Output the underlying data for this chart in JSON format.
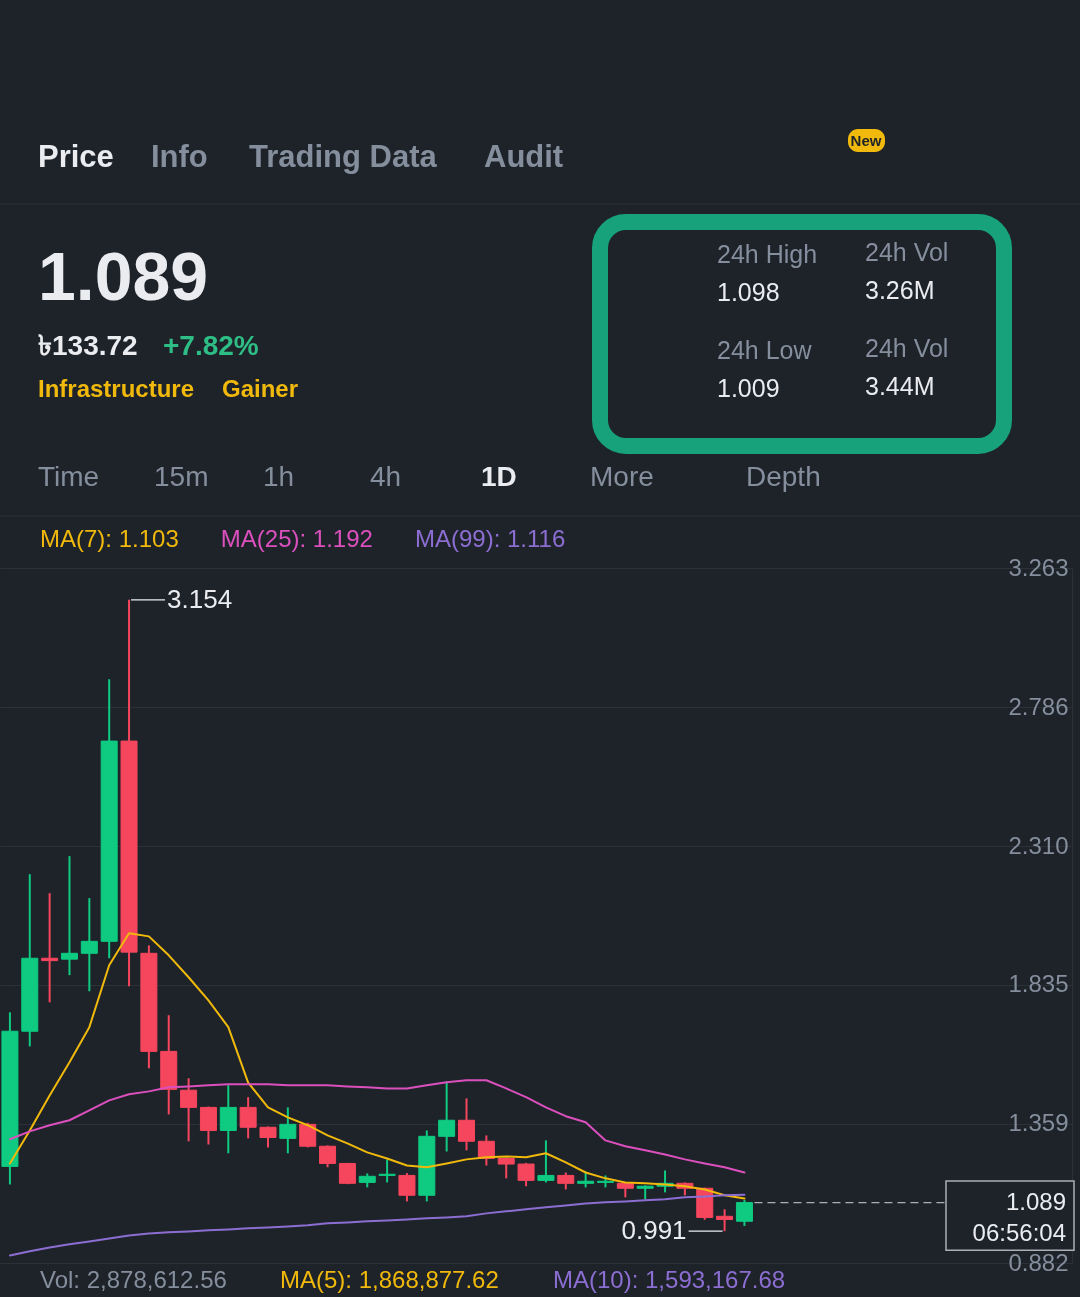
{
  "chart_data": {
    "type": "candlestick",
    "categories": [
      null,
      null,
      null,
      null,
      null,
      null,
      null,
      null,
      null,
      null,
      null,
      null,
      null,
      null,
      null,
      null,
      null,
      null,
      null,
      null,
      null,
      null,
      null,
      null,
      null,
      null,
      null,
      null,
      null,
      null,
      null,
      null,
      null,
      null,
      null,
      null,
      null,
      null,
      null,
      null,
      null,
      null,
      null,
      null,
      null,
      null,
      null,
      null,
      null,
      null,
      null,
      null,
      null,
      null
    ],
    "ohlc": [
      [
        1.213,
        1.741,
        1.151,
        1.676
      ],
      [
        1.676,
        2.214,
        1.624,
        1.926
      ],
      [
        1.926,
        2.149,
        1.775,
        1.918
      ],
      [
        1.923,
        2.276,
        1.868,
        1.943
      ],
      [
        1.943,
        2.132,
        1.813,
        1.984
      ],
      [
        1.984,
        2.882,
        1.926,
        2.67
      ],
      [
        2.67,
        3.154,
        1.83,
        1.947
      ],
      [
        1.943,
        1.97,
        1.549,
        1.607
      ],
      [
        1.607,
        1.731,
        1.391,
        1.477
      ],
      [
        1.474,
        1.515,
        1.299,
        1.415
      ],
      [
        1.415,
        1.418,
        1.288,
        1.336
      ],
      [
        1.336,
        1.491,
        1.258,
        1.415
      ],
      [
        1.415,
        1.45,
        1.309,
        1.347
      ],
      [
        1.347,
        1.35,
        1.278,
        1.312
      ],
      [
        1.309,
        1.415,
        1.258,
        1.357
      ],
      [
        1.357,
        1.362,
        1.278,
        1.282
      ],
      [
        1.282,
        1.285,
        1.21,
        1.223
      ],
      [
        1.223,
        1.225,
        1.152,
        1.155
      ],
      [
        1.158,
        1.189,
        1.141,
        1.179
      ],
      [
        1.182,
        1.237,
        1.158,
        1.186
      ],
      [
        1.182,
        1.19,
        1.093,
        1.114
      ],
      [
        1.114,
        1.336,
        1.093,
        1.316
      ],
      [
        1.316,
        1.504,
        1.264,
        1.371
      ],
      [
        1.371,
        1.446,
        1.268,
        1.299
      ],
      [
        1.299,
        1.319,
        1.216,
        1.24
      ],
      [
        1.24,
        1.24,
        1.172,
        1.221
      ],
      [
        1.221,
        1.225,
        1.145,
        1.165
      ],
      [
        1.165,
        1.302,
        1.158,
        1.182
      ],
      [
        1.182,
        1.192,
        1.134,
        1.155
      ],
      [
        1.155,
        1.196,
        1.141,
        1.162
      ],
      [
        1.158,
        1.182,
        1.141,
        1.162
      ],
      [
        1.155,
        1.158,
        1.107,
        1.138
      ],
      [
        1.138,
        1.148,
        1.1,
        1.145
      ],
      [
        1.145,
        1.199,
        1.124,
        1.155
      ],
      [
        1.155,
        1.158,
        1.114,
        1.138
      ],
      [
        1.138,
        1.14,
        1.03,
        1.038
      ],
      [
        1.042,
        1.066,
        0.991,
        1.031
      ],
      [
        1.025,
        1.098,
        1.009,
        1.089
      ],
      null,
      null,
      null,
      null,
      null,
      null,
      null,
      null,
      null,
      null,
      null,
      null,
      null,
      null,
      null,
      null
    ],
    "colors": [
      "#0ecb81",
      "#0ecb81",
      "#f6465d",
      "#0ecb81",
      "#0ecb81",
      "#0ecb81",
      "#f6465d",
      "#f6465d",
      "#f6465d",
      "#f6465d",
      "#f6465d",
      "#0ecb81",
      "#f6465d",
      "#f6465d",
      "#0ecb81",
      "#f6465d",
      "#f6465d",
      "#f6465d",
      "#0ecb81",
      "#0ecb81",
      "#f6465d",
      "#0ecb81",
      "#0ecb81",
      "#f6465d",
      "#f6465d",
      "#f6465d",
      "#f6465d",
      "#0ecb81",
      "#f6465d",
      "#0ecb81",
      "#0ecb81",
      "#f6465d",
      "#0ecb81",
      "#0ecb81",
      "#f6465d",
      "#f6465d",
      "#f6465d",
      "#0ecb81",
      null,
      null,
      null,
      null,
      null,
      null,
      null,
      null,
      null,
      null,
      null,
      null,
      null,
      null,
      null,
      null
    ],
    "series": [
      {
        "name": "MA(7): 1.103",
        "type": "line",
        "color": "#f0b90b",
        "values": [
          1.223,
          1.336,
          1.456,
          1.57,
          1.69,
          1.902,
          2.012,
          2.001,
          1.936,
          1.861,
          1.782,
          1.69,
          1.5,
          1.415,
          1.381,
          1.354,
          1.319,
          1.292,
          1.261,
          1.24,
          1.216,
          1.21,
          1.223,
          1.237,
          1.244,
          1.247,
          1.244,
          1.258,
          1.227,
          1.192,
          1.172,
          1.158,
          1.155,
          1.151,
          1.145,
          1.134,
          1.114,
          1.103,
          null,
          null,
          null,
          null,
          null,
          null,
          null,
          null,
          null,
          null,
          null,
          null,
          null,
          null,
          null,
          null
        ]
      },
      {
        "name": "MA(25): 1.192",
        "type": "line",
        "color": "#dc50be",
        "values": [
          1.306,
          1.333,
          1.354,
          1.371,
          1.405,
          1.439,
          1.46,
          1.47,
          1.484,
          1.487,
          1.491,
          1.494,
          1.494,
          1.494,
          1.491,
          1.491,
          1.491,
          1.487,
          1.484,
          1.48,
          1.48,
          1.491,
          1.501,
          1.508,
          1.508,
          1.48,
          1.45,
          1.415,
          1.385,
          1.364,
          1.302,
          1.282,
          1.268,
          1.254,
          1.237,
          1.223,
          1.21,
          1.192,
          null,
          null,
          null,
          null,
          null,
          null,
          null,
          null,
          null,
          null,
          null,
          null,
          null,
          null,
          null,
          null
        ]
      },
      {
        "name": "MA(99): 1.116",
        "type": "line",
        "color": "#8c6ed2",
        "values": [
          0.908,
          0.922,
          0.935,
          0.946,
          0.956,
          0.966,
          0.976,
          0.983,
          0.987,
          0.99,
          0.994,
          0.997,
          1.001,
          1.004,
          1.007,
          1.011,
          1.018,
          1.021,
          1.025,
          1.028,
          1.031,
          1.035,
          1.038,
          1.042,
          1.052,
          1.059,
          1.066,
          1.073,
          1.079,
          1.086,
          1.09,
          1.093,
          1.097,
          1.1,
          1.107,
          1.11,
          1.114,
          1.116,
          null,
          null,
          null,
          null,
          null,
          null,
          null,
          null,
          null,
          null,
          null,
          null,
          null,
          null,
          null,
          null
        ]
      }
    ],
    "ylim": [
      0.882,
      3.263
    ],
    "yticks": [
      0.882,
      1.359,
      1.835,
      {
        "value": 2.31,
        "label": "2.310"
      },
      2.786,
      3.263
    ],
    "tick_labels": "y",
    "grid": "y",
    "legend": "top left",
    "ref_lines": [
      {
        "axis": "y",
        "value": 1.089,
        "label": "1.089",
        "line_style": "dashed",
        "color": "#aab0b8"
      }
    ],
    "annotations": [
      "Price",
      "Info",
      "Trading Data",
      "Audit",
      "New",
      "1.089",
      "৳133.72",
      "+7.82%",
      "Infrastructure",
      "Gainer",
      "24h High",
      "1.098",
      "24h Vol",
      "3.26M",
      "24h Low",
      "1.009",
      "24h Vol",
      "3.44M",
      "Time",
      "15m",
      "1h",
      "4h",
      "1D",
      "More",
      "Depth",
      "06:56:04",
      "Vol: 2,878,612.56",
      "MA(5): 1,868,877.62",
      "MA(10): 1,593,167.68",
      "3.154",
      "0.991"
    ]
  }
}
